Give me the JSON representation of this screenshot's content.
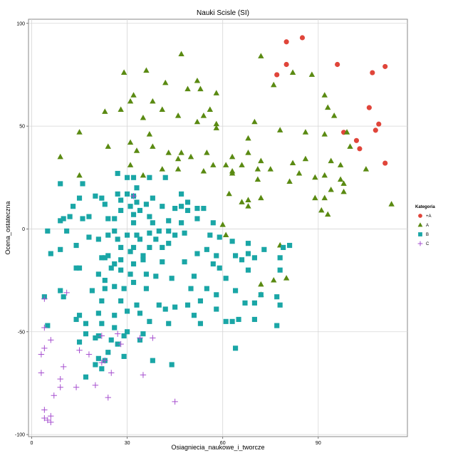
{
  "chart_data": {
    "type": "scatter",
    "title": "Nauki Scisle (SI)",
    "xlabel": "Osiagniecia_naukowe_i_tworcze",
    "ylabel": "Ocena_ostateczna",
    "xlim": [
      -1,
      118
    ],
    "ylim": [
      -101,
      102
    ],
    "x_ticks": [
      0,
      30,
      60,
      90
    ],
    "y_ticks": [
      -100,
      -50,
      0,
      50,
      100
    ],
    "grid": true,
    "legend": {
      "title": "Kategoria",
      "placement": "right"
    },
    "series": [
      {
        "name": "+A",
        "marker": "circle",
        "color": "#e0453a",
        "points": [
          [
            80,
            91
          ],
          [
            85,
            93
          ],
          [
            96,
            80
          ],
          [
            80,
            80
          ],
          [
            77,
            75
          ],
          [
            107,
            76
          ],
          [
            111,
            79
          ],
          [
            106,
            59
          ],
          [
            98,
            47
          ],
          [
            102,
            43
          ],
          [
            103,
            39
          ],
          [
            109,
            51
          ],
          [
            108,
            48
          ],
          [
            111,
            32
          ]
        ]
      },
      {
        "name": "A",
        "marker": "triangle",
        "color": "#5a8a12",
        "points": [
          [
            47,
            85
          ],
          [
            72,
            84
          ],
          [
            29,
            76
          ],
          [
            36,
            77
          ],
          [
            42,
            71
          ],
          [
            52,
            72
          ],
          [
            88,
            75
          ],
          [
            82,
            76
          ],
          [
            76,
            70
          ],
          [
            92,
            65
          ],
          [
            32,
            65
          ],
          [
            31,
            62
          ],
          [
            49,
            68
          ],
          [
            53,
            68
          ],
          [
            58,
            66
          ],
          [
            38,
            62
          ],
          [
            41,
            58
          ],
          [
            23,
            57
          ],
          [
            28,
            58
          ],
          [
            46,
            55
          ],
          [
            54,
            55
          ],
          [
            35,
            54
          ],
          [
            56,
            58
          ],
          [
            52,
            52
          ],
          [
            58,
            51
          ],
          [
            70,
            52
          ],
          [
            15,
            47
          ],
          [
            31,
            42
          ],
          [
            37,
            46
          ],
          [
            58,
            49
          ],
          [
            68,
            44
          ],
          [
            78,
            48
          ],
          [
            92,
            46
          ],
          [
            86,
            47
          ],
          [
            93,
            59
          ],
          [
            95,
            55
          ],
          [
            99,
            47
          ],
          [
            100,
            40
          ],
          [
            33,
            38
          ],
          [
            38,
            40
          ],
          [
            43,
            37
          ],
          [
            24,
            40
          ],
          [
            47,
            37
          ],
          [
            50,
            35
          ],
          [
            55,
            37
          ],
          [
            63,
            35
          ],
          [
            68,
            37
          ],
          [
            72,
            33
          ],
          [
            46,
            34
          ],
          [
            61,
            31
          ],
          [
            66,
            31
          ],
          [
            31,
            31
          ],
          [
            35,
            26
          ],
          [
            41,
            29
          ],
          [
            46,
            29
          ],
          [
            54,
            28
          ],
          [
            57,
            31
          ],
          [
            63,
            28
          ],
          [
            71,
            29
          ],
          [
            9,
            35
          ],
          [
            15,
            26
          ],
          [
            75,
            29
          ],
          [
            82,
            32
          ],
          [
            86,
            34
          ],
          [
            94,
            33
          ],
          [
            97,
            31
          ],
          [
            92,
            26
          ],
          [
            97,
            24
          ],
          [
            105,
            29
          ],
          [
            89,
            25
          ],
          [
            81,
            23
          ],
          [
            84,
            27
          ],
          [
            94,
            19
          ],
          [
            98,
            22
          ],
          [
            98,
            18
          ],
          [
            92,
            15
          ],
          [
            89,
            15
          ],
          [
            93,
            7
          ],
          [
            91,
            9
          ],
          [
            63,
            27
          ],
          [
            71,
            24
          ],
          [
            62,
            17
          ],
          [
            66,
            13
          ],
          [
            68,
            14
          ],
          [
            68,
            11
          ],
          [
            72,
            15
          ],
          [
            61,
            -3
          ],
          [
            60,
            2
          ],
          [
            113,
            12
          ],
          [
            78,
            -8
          ],
          [
            80,
            -24
          ],
          [
            72,
            -27
          ],
          [
            76,
            -25
          ],
          [
            72,
            -32
          ]
        ]
      },
      {
        "name": "B",
        "marker": "square",
        "color": "#1aa6a6",
        "points": [
          [
            9,
            22
          ],
          [
            16,
            22
          ],
          [
            20,
            16
          ],
          [
            27,
            17
          ],
          [
            30,
            17
          ],
          [
            33,
            20
          ],
          [
            30,
            25
          ],
          [
            32,
            25
          ],
          [
            37,
            25
          ],
          [
            42,
            25
          ],
          [
            27,
            27
          ],
          [
            15,
            15
          ],
          [
            22,
            15
          ],
          [
            32,
            16
          ],
          [
            38,
            15
          ],
          [
            47,
            17
          ],
          [
            13,
            11
          ],
          [
            23,
            12
          ],
          [
            28,
            14
          ],
          [
            33,
            13
          ],
          [
            36,
            12
          ],
          [
            41,
            11
          ],
          [
            47,
            11
          ],
          [
            49,
            13
          ],
          [
            52,
            10
          ],
          [
            28,
            9
          ],
          [
            31,
            11
          ],
          [
            32,
            7
          ],
          [
            34,
            9
          ],
          [
            37,
            6
          ],
          [
            45,
            10
          ],
          [
            49,
            9
          ],
          [
            54,
            10
          ],
          [
            18,
            6
          ],
          [
            10,
            5
          ],
          [
            12,
            6
          ],
          [
            9,
            4
          ],
          [
            16,
            5
          ],
          [
            24,
            5
          ],
          [
            26,
            5
          ],
          [
            32,
            3
          ],
          [
            38,
            3
          ],
          [
            43,
            4
          ],
          [
            47,
            3
          ],
          [
            52,
            5
          ],
          [
            57,
            3
          ],
          [
            5,
            -1
          ],
          [
            11,
            -1
          ],
          [
            18,
            -4
          ],
          [
            24,
            -3
          ],
          [
            26,
            -1
          ],
          [
            30,
            -3
          ],
          [
            33,
            -3
          ],
          [
            37,
            -2
          ],
          [
            40,
            -1
          ],
          [
            43,
            -1
          ],
          [
            45,
            -3
          ],
          [
            48,
            -2
          ],
          [
            56,
            -3
          ],
          [
            21,
            -5
          ],
          [
            27,
            -5
          ],
          [
            34,
            -5
          ],
          [
            39,
            -5
          ],
          [
            43,
            -7
          ],
          [
            28,
            -9
          ],
          [
            32,
            -9
          ],
          [
            37,
            -9
          ],
          [
            41,
            -9
          ],
          [
            59,
            -4
          ],
          [
            63,
            -6
          ],
          [
            68,
            -7
          ],
          [
            73,
            -10
          ],
          [
            9,
            -10
          ],
          [
            14,
            -8
          ],
          [
            24,
            -13
          ],
          [
            28,
            -15
          ],
          [
            31,
            -11
          ],
          [
            35,
            -13
          ],
          [
            52,
            -12
          ],
          [
            55,
            -10
          ],
          [
            58,
            -13
          ],
          [
            64,
            -13
          ],
          [
            66,
            -15
          ],
          [
            68,
            -12
          ],
          [
            70,
            -14
          ],
          [
            78,
            -14
          ],
          [
            81,
            -8
          ],
          [
            79,
            -9
          ],
          [
            6,
            -12
          ],
          [
            22,
            -14
          ],
          [
            26,
            -17
          ],
          [
            23,
            -14
          ],
          [
            32,
            -17
          ],
          [
            35,
            -15
          ],
          [
            41,
            -16
          ],
          [
            48,
            -16
          ],
          [
            57,
            -17
          ],
          [
            59,
            -19
          ],
          [
            68,
            -20
          ],
          [
            78,
            -20
          ],
          [
            14,
            -19
          ],
          [
            15,
            -19
          ],
          [
            25,
            -19
          ],
          [
            28,
            -20
          ],
          [
            31,
            -22
          ],
          [
            36,
            -22
          ],
          [
            39,
            -23
          ],
          [
            51,
            -23
          ],
          [
            61,
            -24
          ],
          [
            21,
            -22
          ],
          [
            23,
            -25
          ],
          [
            19,
            -30
          ],
          [
            29,
            -29
          ],
          [
            32,
            -26
          ],
          [
            36,
            -29
          ],
          [
            44,
            -24
          ],
          [
            9,
            -30
          ],
          [
            23,
            -29
          ],
          [
            26,
            -28
          ],
          [
            50,
            -29
          ],
          [
            55,
            -29
          ],
          [
            58,
            -32
          ],
          [
            64,
            -30
          ],
          [
            72,
            -32
          ],
          [
            77,
            -33
          ],
          [
            4,
            -33
          ],
          [
            10,
            -33
          ],
          [
            22,
            -35
          ],
          [
            28,
            -35
          ],
          [
            33,
            -37
          ],
          [
            40,
            -37
          ],
          [
            45,
            -38
          ],
          [
            49,
            -37
          ],
          [
            53,
            -35
          ],
          [
            58,
            -39
          ],
          [
            67,
            -36
          ],
          [
            70,
            -36
          ],
          [
            78,
            -37
          ],
          [
            15,
            -42
          ],
          [
            21,
            -41
          ],
          [
            26,
            -42
          ],
          [
            30,
            -40
          ],
          [
            34,
            -41
          ],
          [
            42,
            -39
          ],
          [
            51,
            -42
          ],
          [
            5,
            -47
          ],
          [
            14,
            -44
          ],
          [
            17,
            -46
          ],
          [
            22,
            -46
          ],
          [
            26,
            -48
          ],
          [
            37,
            -45
          ],
          [
            43,
            -46
          ],
          [
            53,
            -46
          ],
          [
            61,
            -45
          ],
          [
            63,
            -45
          ],
          [
            65,
            -44
          ],
          [
            70,
            -44
          ],
          [
            77,
            -47
          ],
          [
            17,
            -51
          ],
          [
            21,
            -52
          ],
          [
            30,
            -50
          ],
          [
            35,
            -51
          ],
          [
            20,
            -53
          ],
          [
            25,
            -54
          ],
          [
            29,
            -52
          ],
          [
            34,
            -54
          ],
          [
            64,
            -58
          ],
          [
            15,
            -55
          ],
          [
            27,
            -56
          ],
          [
            24,
            -60
          ],
          [
            29,
            -62
          ],
          [
            21,
            -63
          ],
          [
            23,
            -64
          ],
          [
            38,
            -64
          ],
          [
            44,
            -66
          ],
          [
            20,
            -66
          ],
          [
            22,
            -68
          ],
          [
            17,
            -72
          ]
        ]
      },
      {
        "name": "C",
        "marker": "cross",
        "color": "#a64fcf",
        "points": [
          [
            32,
            16
          ],
          [
            4,
            -34
          ],
          [
            4,
            -48
          ],
          [
            11,
            -31
          ],
          [
            6,
            -54
          ],
          [
            22,
            -52
          ],
          [
            27,
            -51
          ],
          [
            28,
            -56
          ],
          [
            34,
            -53
          ],
          [
            38,
            -53
          ],
          [
            4,
            -58
          ],
          [
            3,
            -61
          ],
          [
            15,
            -59
          ],
          [
            18,
            -61
          ],
          [
            23,
            -64
          ],
          [
            25,
            -70
          ],
          [
            35,
            -71
          ],
          [
            10,
            -67
          ],
          [
            22,
            -65
          ],
          [
            3,
            -70
          ],
          [
            9,
            -73
          ],
          [
            9,
            -77
          ],
          [
            14,
            -77
          ],
          [
            20,
            -76
          ],
          [
            7,
            -81
          ],
          [
            24,
            -82
          ],
          [
            4,
            -88
          ],
          [
            45,
            -84
          ],
          [
            4,
            -92
          ],
          [
            5,
            -93
          ],
          [
            6,
            -91
          ],
          [
            6,
            -94
          ]
        ]
      }
    ]
  }
}
